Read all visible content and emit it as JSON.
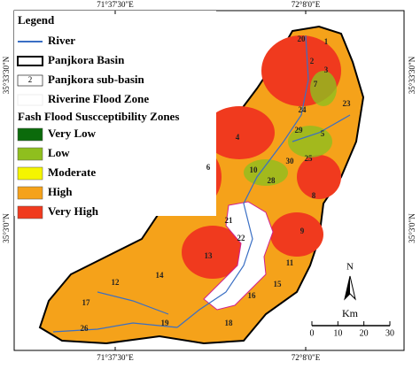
{
  "legend": {
    "title": "Legend",
    "items": [
      {
        "label": "River"
      },
      {
        "label": "Panjkora Basin"
      },
      {
        "symbol": "2",
        "label": "Panjkora sub-basin"
      },
      {
        "label": "Riverine Flood Zone"
      }
    ],
    "zones_title": "Fash Flood Suscceptibility Zones",
    "zones": [
      {
        "label": "Very Low",
        "color": "#0b6b0b"
      },
      {
        "label": "Low",
        "color": "#8fbf1e"
      },
      {
        "label": "Moderate",
        "color": "#f5f500"
      },
      {
        "label": "High",
        "color": "#f5a21a"
      },
      {
        "label": "Very High",
        "color": "#f03a1e"
      }
    ]
  },
  "coordinates": {
    "top": [
      "71°37'30\"E",
      "72°8'0\"E"
    ],
    "bottom": [
      "71°37'30\"E",
      "72°8'0\"E"
    ],
    "left": [
      "35°33'30\"N",
      "35°3'0\"N"
    ],
    "right": [
      "35°33'30\"N",
      "35°3'0\"N"
    ]
  },
  "north": "N",
  "scale_bar": {
    "unit": "Km",
    "ticks": [
      0,
      10,
      20,
      30
    ]
  },
  "sub_basins": [
    "20",
    "1",
    "2",
    "3",
    "7",
    "24",
    "23",
    "4",
    "29",
    "5",
    "30",
    "25",
    "6",
    "10",
    "28",
    "8",
    "21",
    "22",
    "9",
    "13",
    "11",
    "12",
    "14",
    "15",
    "16",
    "17",
    "26",
    "19",
    "18"
  ]
}
